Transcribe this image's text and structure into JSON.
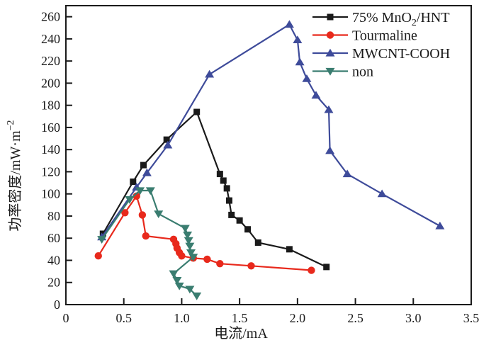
{
  "figure": {
    "background": "#ffffff",
    "frame_color": "#1a1a1a"
  },
  "chart_data": {
    "type": "line",
    "title": "",
    "xlabel": "电流/mA",
    "ylabel": "功率密度/mW·m⁻²",
    "ylabel_parts": [
      {
        "text": "功率密度/mW·m"
      },
      {
        "text": "−2",
        "script": "super"
      }
    ],
    "xlim": [
      0,
      3.5
    ],
    "ylim": [
      0,
      270
    ],
    "grid": false,
    "legend_position": "top-right-inside",
    "xticks": [
      {
        "v": 0,
        "label": "0"
      },
      {
        "v": 0.5,
        "label": "0.5"
      },
      {
        "v": 1.0,
        "label": "1.0"
      },
      {
        "v": 1.5,
        "label": "1.5"
      },
      {
        "v": 2.0,
        "label": "2.0"
      },
      {
        "v": 2.5,
        "label": "2.5"
      },
      {
        "v": 3.0,
        "label": "3.0"
      },
      {
        "v": 3.5,
        "label": "3.5"
      }
    ],
    "yticks": [
      {
        "v": 0,
        "label": "0"
      },
      {
        "v": 20,
        "label": "20"
      },
      {
        "v": 40,
        "label": "40"
      },
      {
        "v": 60,
        "label": "60"
      },
      {
        "v": 80,
        "label": "80"
      },
      {
        "v": 100,
        "label": "100"
      },
      {
        "v": 120,
        "label": "120"
      },
      {
        "v": 140,
        "label": "140"
      },
      {
        "v": 160,
        "label": "160"
      },
      {
        "v": 180,
        "label": "180"
      },
      {
        "v": 200,
        "label": "200"
      },
      {
        "v": 220,
        "label": "220"
      },
      {
        "v": 240,
        "label": "240"
      },
      {
        "v": 260,
        "label": "260"
      }
    ],
    "series": [
      {
        "name": "75-mno2-hnt",
        "label": "75% MnO₂/HNT",
        "label_parts": [
          {
            "text": "75% MnO"
          },
          {
            "text": "2",
            "script": "sub"
          },
          {
            "text": "/HNT"
          }
        ],
        "color": "#1a1a1a",
        "marker": "square",
        "points": [
          [
            0.32,
            64
          ],
          [
            0.58,
            111
          ],
          [
            0.67,
            126
          ],
          [
            0.87,
            149
          ],
          [
            1.13,
            174
          ],
          [
            1.33,
            118
          ],
          [
            1.36,
            112
          ],
          [
            1.39,
            105
          ],
          [
            1.41,
            94
          ],
          [
            1.43,
            81
          ],
          [
            1.5,
            76
          ],
          [
            1.57,
            68
          ],
          [
            1.66,
            56
          ],
          [
            1.93,
            50
          ],
          [
            2.25,
            34
          ]
        ]
      },
      {
        "name": "tourmaline",
        "label": "Tourmaline",
        "label_parts": [
          {
            "text": "Tourmaline"
          }
        ],
        "color": "#e8291c",
        "marker": "circle",
        "points": [
          [
            0.28,
            44
          ],
          [
            0.51,
            83
          ],
          [
            0.61,
            98
          ],
          [
            0.66,
            81
          ],
          [
            0.69,
            62
          ],
          [
            0.93,
            59
          ],
          [
            0.95,
            55
          ],
          [
            0.96,
            51
          ],
          [
            0.98,
            47
          ],
          [
            1.0,
            44
          ],
          [
            1.1,
            42
          ],
          [
            1.22,
            41
          ],
          [
            1.33,
            37
          ],
          [
            1.6,
            35
          ],
          [
            2.12,
            31
          ]
        ]
      },
      {
        "name": "mwcnt-cooh",
        "label": "MWCNT-COOH",
        "label_parts": [
          {
            "text": "MWCNT-COOH"
          }
        ],
        "color": "#3e4b9a",
        "marker": "triangle-up",
        "points": [
          [
            0.31,
            61
          ],
          [
            0.61,
            106
          ],
          [
            0.7,
            119
          ],
          [
            0.88,
            144
          ],
          [
            1.24,
            208
          ],
          [
            1.93,
            253
          ],
          [
            2.0,
            239
          ],
          [
            2.02,
            219
          ],
          [
            2.08,
            204
          ],
          [
            2.16,
            189
          ],
          [
            2.27,
            176
          ],
          [
            2.28,
            139
          ],
          [
            2.43,
            118
          ],
          [
            2.73,
            100
          ],
          [
            3.23,
            71
          ]
        ]
      },
      {
        "name": "non",
        "label": "non",
        "label_parts": [
          {
            "text": "non"
          }
        ],
        "color": "#3a7d70",
        "marker": "triangle-down",
        "points": [
          [
            0.31,
            59
          ],
          [
            0.55,
            95
          ],
          [
            0.64,
            103
          ],
          [
            0.73,
            103
          ],
          [
            0.8,
            82
          ],
          [
            1.03,
            69
          ],
          [
            1.05,
            63
          ],
          [
            1.06,
            58
          ],
          [
            1.07,
            53
          ],
          [
            1.08,
            47
          ],
          [
            1.1,
            43
          ],
          [
            0.93,
            28
          ],
          [
            0.96,
            22
          ],
          [
            0.98,
            17
          ],
          [
            1.07,
            14
          ],
          [
            1.13,
            8
          ]
        ]
      }
    ]
  }
}
